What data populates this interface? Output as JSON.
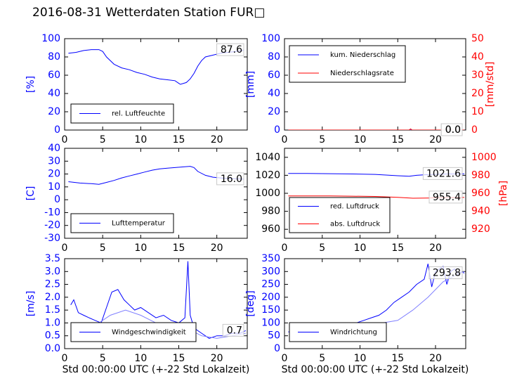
{
  "title": "2016-08-31 Wetterdaten Station FUR□",
  "colors": {
    "primary": "#0000ff",
    "secondary": "#ff0000",
    "light": "#8080ff"
  },
  "chart_data": [
    {
      "type": "line",
      "title": "",
      "xlabel": "",
      "ylabel": "[%]",
      "xlim": [
        0,
        24
      ],
      "ylim": [
        0,
        100
      ],
      "xticks": [
        0,
        5,
        10,
        15,
        20
      ],
      "yticks": [
        0,
        20,
        40,
        60,
        80,
        100
      ],
      "legend": "lower-left",
      "last_value": "87.6",
      "series": [
        {
          "name": "rel. Luftfeuchte",
          "x": [
            0.5,
            1.5,
            2.5,
            3.5,
            4.5,
            5.0,
            5.5,
            6.5,
            7.5,
            8.5,
            9.5,
            10.5,
            11.5,
            12.5,
            13.5,
            14.5,
            15.2,
            16.0,
            16.5,
            17.0,
            17.5,
            18.0,
            18.5,
            19.5,
            20.5,
            21.5,
            22.5,
            23.5
          ],
          "y": [
            84,
            85,
            87,
            88,
            88,
            86,
            80,
            72,
            68,
            66,
            63,
            61,
            58,
            56,
            55,
            54,
            50,
            52,
            56,
            62,
            70,
            76,
            80,
            82,
            84,
            85,
            86,
            87.6
          ]
        }
      ]
    },
    {
      "type": "line",
      "title": "",
      "xlabel": "",
      "ylabel": "[mm]",
      "ylabel2": "[mm/std]",
      "xlim": [
        0,
        24
      ],
      "ylim": [
        0,
        100
      ],
      "ylim2": [
        0,
        50
      ],
      "xticks": [
        0,
        5,
        10,
        15,
        20
      ],
      "yticks": [
        0,
        20,
        40,
        60,
        80,
        100
      ],
      "yticks2": [
        0,
        10,
        20,
        30,
        40,
        50
      ],
      "legend": "upper-left",
      "last_value": "0.0",
      "last_value2": "0.0",
      "series": [
        {
          "name": "kum. Niederschlag",
          "axis": "left",
          "x": [
            0.5,
            23.8
          ],
          "y": [
            0,
            0
          ]
        },
        {
          "name": "Niederschlagsrate",
          "axis": "right",
          "x": [
            0.5,
            16.5,
            16.7,
            16.9,
            23.8
          ],
          "y": [
            0,
            0,
            0.6,
            0,
            0
          ]
        }
      ]
    },
    {
      "type": "line",
      "title": "",
      "xlabel": "",
      "ylabel": "[C]",
      "xlim": [
        0,
        24
      ],
      "ylim": [
        -30,
        40
      ],
      "xticks": [
        0,
        5,
        10,
        15,
        20
      ],
      "yticks": [
        -30,
        -20,
        -10,
        0,
        10,
        20,
        30,
        40
      ],
      "legend": "lower-left",
      "last_value": "16.0",
      "series": [
        {
          "name": "Lufttemperatur",
          "x": [
            0.5,
            2,
            3.5,
            4.5,
            5.5,
            6.5,
            7.5,
            8.5,
            9.5,
            10.5,
            11.5,
            12.5,
            13.5,
            14.5,
            15.5,
            16.5,
            17.0,
            17.5,
            18.5,
            19.5,
            20.5,
            21.5,
            22.5,
            23.5
          ],
          "y": [
            14,
            13,
            12.5,
            12,
            13.5,
            15,
            17,
            18.5,
            20,
            21.5,
            23,
            24,
            24.5,
            25,
            25.5,
            26,
            25,
            22,
            19,
            17.5,
            17,
            16.5,
            16.2,
            16
          ]
        }
      ]
    },
    {
      "type": "line",
      "title": "",
      "xlabel": "",
      "ylabel": "[hPa]",
      "xlim": [
        0,
        24
      ],
      "ylim": [
        950,
        1050
      ],
      "ylim2": [
        910,
        1010
      ],
      "xticks": [
        0,
        5,
        10,
        15,
        20
      ],
      "yticks": [
        960,
        980,
        1000,
        1020,
        1040
      ],
      "yticks2": [
        920,
        940,
        960,
        980,
        1000
      ],
      "legend": "lower-left",
      "last_value": "1021.6",
      "last_value2": "955.4",
      "series": [
        {
          "name": "red. Luftdruck",
          "axis": "left",
          "x": [
            0.5,
            3,
            6,
            9,
            12,
            15,
            16.5,
            17.5,
            19,
            21,
            23.8
          ],
          "y": [
            1022,
            1022,
            1021.8,
            1021.5,
            1021,
            1019.5,
            1019,
            1020,
            1020.8,
            1021.3,
            1021.6
          ]
        },
        {
          "name": "abs. Luftdruck",
          "axis": "right",
          "x": [
            0.5,
            3,
            6,
            9,
            12,
            15,
            17,
            19,
            21,
            23.8
          ],
          "y": [
            957,
            957,
            957,
            956.8,
            956.5,
            955.5,
            954.5,
            954.8,
            955.2,
            955.4
          ]
        }
      ]
    },
    {
      "type": "line",
      "title": "",
      "xlabel": "Std 00:00:00 UTC (+-22 Std Lokalzeit)",
      "ylabel": "[m/s]",
      "xlim": [
        0,
        24
      ],
      "ylim": [
        0,
        3.5
      ],
      "xticks": [
        0,
        5,
        10,
        15,
        20
      ],
      "yticks": [
        0.0,
        0.5,
        1.0,
        1.5,
        2.0,
        2.5,
        3.0,
        3.5
      ],
      "legend": "lower-left",
      "last_value": "0.7",
      "series": [
        {
          "name": "Windgeschwindigkeit",
          "x": [
            0.8,
            1.2,
            1.8,
            2.5,
            3.2,
            4.0,
            4.8,
            5.5,
            6.2,
            7.0,
            7.8,
            8.5,
            9.2,
            10.0,
            11.0,
            12.0,
            13.0,
            14.0,
            15.0,
            15.8,
            16.2,
            16.5,
            17.0,
            18.0,
            19.0,
            20.0,
            21.0,
            22.0,
            23.0,
            23.8
          ],
          "y": [
            1.7,
            1.9,
            1.4,
            1.3,
            1.2,
            1.1,
            1.0,
            1.6,
            2.2,
            2.3,
            1.9,
            1.7,
            1.5,
            1.6,
            1.4,
            1.2,
            1.3,
            1.1,
            1.0,
            1.2,
            3.4,
            1.3,
            0.8,
            0.6,
            0.4,
            0.5,
            0.5,
            0.6,
            0.6,
            0.7
          ]
        },
        {
          "name": "",
          "x": [
            4.5,
            6.0,
            8.0,
            10.0,
            12.0,
            14.0,
            16.0,
            18.0,
            20.0,
            22.0,
            23.8
          ],
          "y": [
            1.0,
            1.3,
            1.5,
            1.3,
            1.0,
            0.9,
            0.8,
            0.5,
            0.4,
            0.5,
            0.6
          ]
        }
      ]
    },
    {
      "type": "line",
      "title": "",
      "xlabel": "Std 00:00:00 UTC (+-22 Std Lokalzeit)",
      "ylabel": "[deg]",
      "xlim": [
        0,
        24
      ],
      "ylim": [
        0,
        350
      ],
      "xticks": [
        0,
        5,
        10,
        15,
        20
      ],
      "yticks": [
        0,
        50,
        100,
        150,
        200,
        250,
        300,
        350
      ],
      "legend": "lower-left",
      "last_value": "293.8",
      "series": [
        {
          "name": "Windrichtung",
          "x": [
            0.5,
            1.5,
            2.5,
            3.5,
            4.5,
            5.5,
            6.5,
            7.5,
            8.5,
            9.5,
            10.5,
            11.5,
            12.5,
            13.5,
            14.5,
            15.5,
            16.5,
            17.5,
            18.5,
            19.0,
            19.5,
            20.0,
            20.5,
            21.0,
            21.5,
            22.0,
            22.5,
            23.0,
            23.5,
            23.8
          ],
          "y": [
            65,
            70,
            68,
            72,
            75,
            80,
            82,
            85,
            95,
            100,
            110,
            120,
            130,
            150,
            180,
            200,
            220,
            250,
            270,
            330,
            240,
            300,
            310,
            320,
            250,
            300,
            310,
            290,
            300,
            293.8
          ]
        },
        {
          "name": "",
          "x": [
            1.0,
            3.0,
            5.0,
            7.0,
            9.0,
            11.0,
            13.0,
            15.0,
            17.0,
            19.0,
            21.0,
            23.0,
            23.8
          ],
          "y": [
            60,
            62,
            68,
            75,
            80,
            90,
            100,
            110,
            150,
            200,
            260,
            290,
            300
          ]
        }
      ]
    }
  ]
}
